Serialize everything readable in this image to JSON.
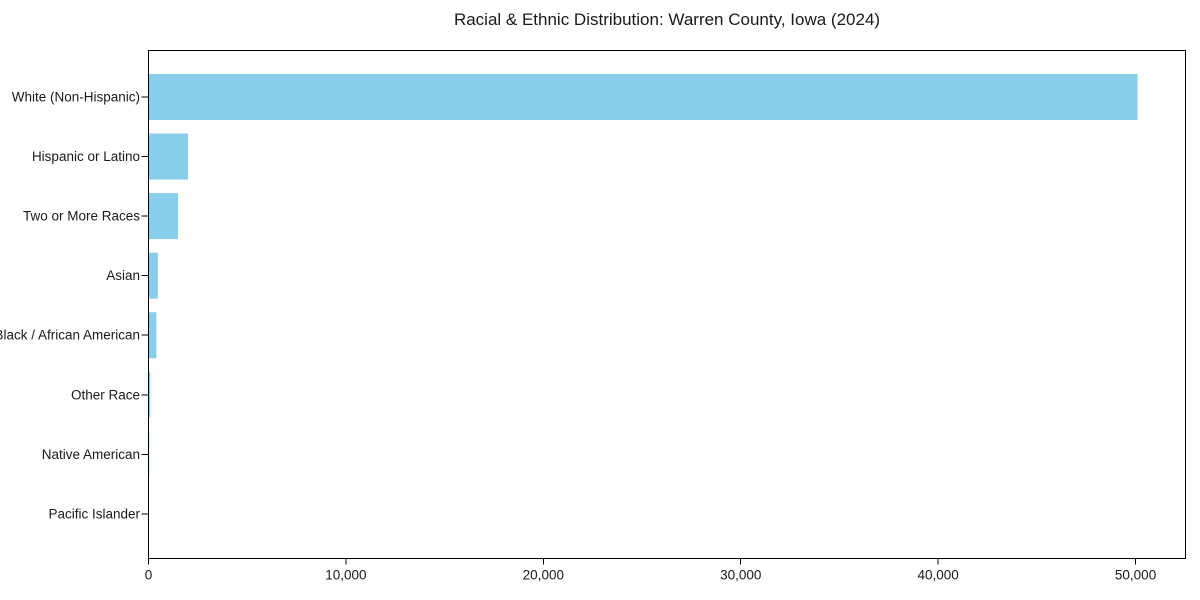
{
  "page": {
    "background": "#ffffff"
  },
  "chart_data": {
    "type": "bar",
    "orientation": "horizontal",
    "title": "Racial & Ethnic Distribution: Warren County, Iowa (2024)",
    "categories": [
      "White (Non-Hispanic)",
      "Hispanic or Latino",
      "Two or More Races",
      "Asian",
      "Black / African American",
      "Other Race",
      "Native American",
      "Pacific Islander"
    ],
    "values": [
      50100,
      2000,
      1500,
      470,
      400,
      90,
      40,
      15
    ],
    "bar_color": "#87CEEB",
    "axis_color": "#000000",
    "text_color": "#1a1a1a",
    "xlim": [
      0,
      52530
    ],
    "x_ticks": [
      0,
      10000,
      20000,
      30000,
      40000,
      50000
    ],
    "x_tick_labels": [
      "0",
      "10,000",
      "20,000",
      "30,000",
      "40,000",
      "50,000"
    ],
    "xlabel": "",
    "ylabel": "",
    "grid": false,
    "legend": null
  }
}
